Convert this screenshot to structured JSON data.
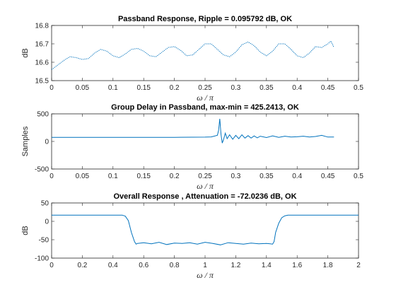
{
  "chart_data": [
    {
      "type": "line",
      "title": "Passband Response,  Ripple = 0.095792 dB, OK",
      "xlabel": "ω / π",
      "ylabel": "dB",
      "xlim": [
        0,
        0.5
      ],
      "ylim": [
        16.5,
        16.8
      ],
      "xticks": [
        "0",
        "0.05",
        "0.1",
        "0.15",
        "0.2",
        "0.25",
        "0.3",
        "0.35",
        "0.4",
        "0.45",
        "0.5"
      ],
      "yticks": [
        "16.5",
        "16.6",
        "16.7",
        "16.8"
      ],
      "series": [
        {
          "color": "#0072BD",
          "style": "dotted",
          "x": [
            0,
            0.01,
            0.02,
            0.03,
            0.04,
            0.05,
            0.06,
            0.07,
            0.08,
            0.09,
            0.1,
            0.11,
            0.12,
            0.13,
            0.14,
            0.15,
            0.16,
            0.17,
            0.18,
            0.19,
            0.2,
            0.21,
            0.22,
            0.23,
            0.24,
            0.25,
            0.26,
            0.27,
            0.28,
            0.29,
            0.3,
            0.31,
            0.32,
            0.33,
            0.34,
            0.35,
            0.36,
            0.37,
            0.38,
            0.39,
            0.4,
            0.41,
            0.42,
            0.43,
            0.44,
            0.45,
            0.455,
            0.46
          ],
          "y": [
            16.56,
            16.585,
            16.61,
            16.63,
            16.625,
            16.615,
            16.62,
            16.65,
            16.67,
            16.66,
            16.635,
            16.625,
            16.645,
            16.67,
            16.675,
            16.66,
            16.635,
            16.63,
            16.655,
            16.68,
            16.685,
            16.665,
            16.635,
            16.64,
            16.67,
            16.7,
            16.7,
            16.67,
            16.64,
            16.63,
            16.655,
            16.695,
            16.71,
            16.69,
            16.655,
            16.635,
            16.66,
            16.7,
            16.7,
            16.67,
            16.635,
            16.625,
            16.65,
            16.685,
            16.68,
            16.7,
            16.715,
            16.68
          ]
        }
      ]
    },
    {
      "type": "line",
      "title": "Group Delay in Passband, max-min = 425.2413, OK",
      "xlabel": "ω / π",
      "ylabel": "Samples",
      "xlim": [
        0,
        0.5
      ],
      "ylim": [
        -500,
        500
      ],
      "xticks": [
        "0",
        "0.05",
        "0.1",
        "0.15",
        "0.2",
        "0.25",
        "0.3",
        "0.35",
        "0.4",
        "0.45",
        "0.5"
      ],
      "yticks": [
        "-500",
        "0",
        "500"
      ],
      "series": [
        {
          "color": "#0072BD",
          "style": "solid",
          "x": [
            0,
            0.05,
            0.1,
            0.15,
            0.2,
            0.25,
            0.26,
            0.27,
            0.272,
            0.274,
            0.276,
            0.278,
            0.28,
            0.283,
            0.286,
            0.29,
            0.295,
            0.3,
            0.305,
            0.31,
            0.315,
            0.32,
            0.325,
            0.33,
            0.335,
            0.34,
            0.35,
            0.36,
            0.37,
            0.38,
            0.39,
            0.4,
            0.41,
            0.42,
            0.43,
            0.44,
            0.45,
            0.46
          ],
          "y": [
            75,
            75,
            75,
            75,
            75,
            78,
            82,
            110,
            200,
            410,
            120,
            -30,
            30,
            150,
            50,
            120,
            40,
            110,
            50,
            120,
            60,
            105,
            60,
            100,
            65,
            95,
            70,
            100,
            75,
            95,
            80,
            85,
            95,
            80,
            90,
            110,
            80,
            80
          ]
        }
      ]
    },
    {
      "type": "line",
      "title": "Overall Response , Attenuation = -72.0236 dB, OK",
      "xlabel": "ω / π",
      "ylabel": "dB",
      "xlim": [
        0,
        2
      ],
      "ylim": [
        -100,
        50
      ],
      "xticks": [
        "0",
        "0.2",
        "0.4",
        "0.6",
        "0.8",
        "1",
        "1.2",
        "1.4",
        "1.6",
        "1.8",
        "2"
      ],
      "yticks": [
        "-100",
        "-50",
        "0",
        "50"
      ],
      "series": [
        {
          "color": "#0072BD",
          "style": "solid",
          "x": [
            0,
            0.2,
            0.46,
            0.48,
            0.5,
            0.52,
            0.54,
            0.55,
            0.56,
            0.6,
            0.65,
            0.7,
            0.75,
            0.8,
            0.85,
            0.9,
            0.95,
            1.0,
            1.05,
            1.1,
            1.15,
            1.2,
            1.25,
            1.3,
            1.35,
            1.4,
            1.44,
            1.45,
            1.46,
            1.48,
            1.5,
            1.52,
            1.54,
            1.8,
            2.0
          ],
          "y": [
            17,
            17,
            17,
            14,
            2,
            -30,
            -55,
            -62,
            -60,
            -58,
            -61,
            -57,
            -63,
            -59,
            -60,
            -58,
            -62,
            -57,
            -60,
            -64,
            -58,
            -60,
            -62,
            -59,
            -61,
            -60,
            -62,
            -55,
            -30,
            -5,
            10,
            15,
            17,
            17,
            17
          ]
        }
      ]
    }
  ]
}
